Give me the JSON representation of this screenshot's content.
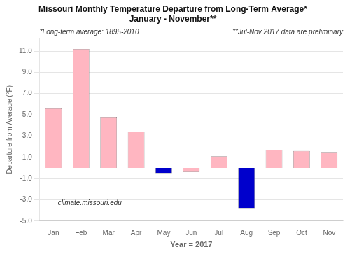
{
  "chart_data": {
    "type": "bar",
    "title": [
      "Missouri Monthly Temperature Departure from Long-Term Average*",
      "January - November**"
    ],
    "subtitle": [
      "*Long-term average: 1895-2010",
      "**Jul-Nov 2017 data are preliminary"
    ],
    "xlabel": "Year = 2017",
    "ylabel": "Departure from Average (°F)",
    "annotations": [
      "climate.missouri.edu"
    ],
    "categories": [
      "Jan",
      "Feb",
      "Mar",
      "Apr",
      "May",
      "Jun",
      "Jul",
      "Aug",
      "Sep",
      "Oct",
      "Nov"
    ],
    "values": [
      5.6,
      11.2,
      4.8,
      3.4,
      -0.5,
      -0.4,
      1.1,
      -3.8,
      1.7,
      1.6,
      1.5
    ],
    "colors": [
      "#FFB6C1",
      "#FFB6C1",
      "#FFB6C1",
      "#FFB6C1",
      "#0000CC",
      "#FFB6C1",
      "#FFB6C1",
      "#0000CC",
      "#FFB6C1",
      "#FFB6C1",
      "#FFB6C1"
    ],
    "ylim": [
      -5.0,
      12.2
    ],
    "yticks": [
      {
        "value": -5.0,
        "label": "-5.0"
      },
      {
        "value": -3.0,
        "label": "-3.0"
      },
      {
        "value": -1.0,
        "label": "-1.0"
      },
      {
        "value": 1.0,
        "label": "1.0"
      },
      {
        "value": 3.0,
        "label": "3.0"
      },
      {
        "value": 5.0,
        "label": "5.0"
      },
      {
        "value": 7.0,
        "label": "7.0"
      },
      {
        "value": 9.0,
        "label": "9.0"
      },
      {
        "value": 11.0,
        "label": "11.0"
      }
    ],
    "grid": true
  }
}
